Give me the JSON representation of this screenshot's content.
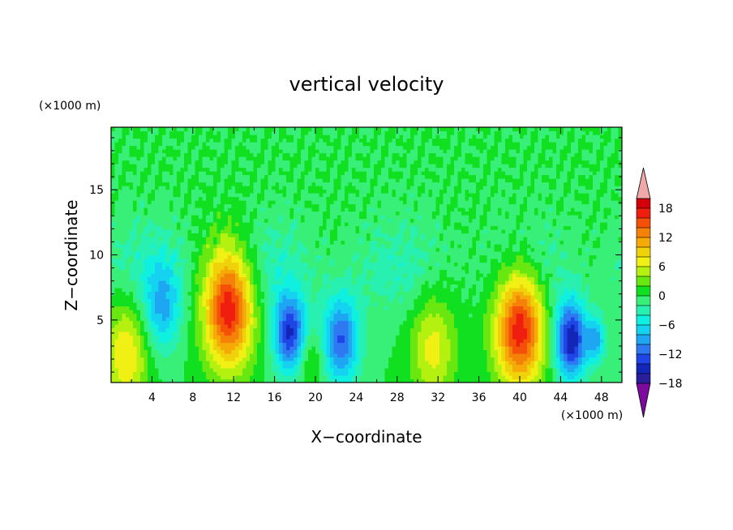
{
  "chart_data": {
    "type": "heatmap",
    "title": "vertical velocity",
    "xlabel": "X−coordinate",
    "ylabel": "Z−coordinate",
    "x_unit": "(×1000 m)",
    "y_unit": "(×1000 m)",
    "xlim": [
      0,
      50
    ],
    "ylim": [
      0.2,
      19.8
    ],
    "x_ticks": [
      "4",
      "8",
      "12",
      "16",
      "20",
      "24",
      "28",
      "32",
      "36",
      "40",
      "44",
      "48"
    ],
    "y_ticks": [
      "5",
      "10",
      "15"
    ],
    "colorbar": {
      "levels": [
        -20,
        -18,
        -16,
        -14,
        -12,
        -10,
        -8,
        -6,
        -4,
        -2,
        0,
        2,
        4,
        6,
        8,
        10,
        12,
        14,
        16,
        18,
        20
      ],
      "tick_labels": [
        "18",
        "12",
        "6",
        "0",
        "−6",
        "−12",
        "−18"
      ],
      "colors": [
        "#7d0a9e",
        "#2a1e9c",
        "#1426b8",
        "#1e46e6",
        "#2e78f2",
        "#1ea6f2",
        "#14d2f0",
        "#10f0e0",
        "#28f0b0",
        "#38f078",
        "#10e020",
        "#68e810",
        "#b4f010",
        "#f0f014",
        "#f0d20a",
        "#f5aa08",
        "#f58208",
        "#f55008",
        "#f01e0e",
        "#d2000a",
        "#f0a8a8"
      ],
      "extend": "both"
    },
    "features": [
      {
        "x": 1.5,
        "z": 2.5,
        "w": 2.2,
        "peak": 8
      },
      {
        "x": 5.0,
        "z": 6.0,
        "w": 1.8,
        "peak": -8
      },
      {
        "x": 11.5,
        "z": 6.0,
        "w": 2.4,
        "peak": 18
      },
      {
        "x": 17.5,
        "z": 4.0,
        "w": 1.6,
        "peak": -14
      },
      {
        "x": 19.5,
        "z": 2.0,
        "w": 1.2,
        "peak": 4
      },
      {
        "x": 22.5,
        "z": 3.5,
        "w": 1.8,
        "peak": -12
      },
      {
        "x": 31.5,
        "z": 3.0,
        "w": 2.2,
        "peak": 7
      },
      {
        "x": 40.0,
        "z": 4.5,
        "w": 2.4,
        "peak": 18
      },
      {
        "x": 45.0,
        "z": 3.5,
        "w": 1.6,
        "peak": -16
      },
      {
        "x": 47.5,
        "z": 3.5,
        "w": 0.9,
        "peak": -8
      }
    ]
  }
}
